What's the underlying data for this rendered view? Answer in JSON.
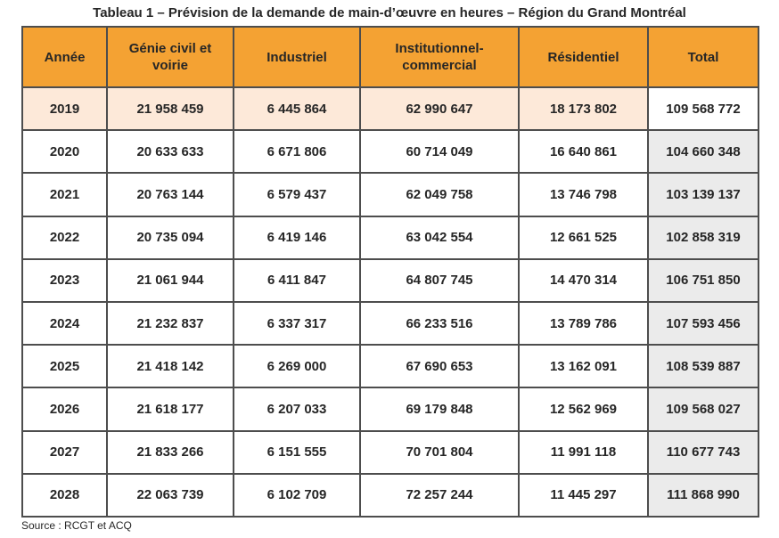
{
  "title": "Tableau 1 – Prévision de la demande de main-d’œuvre en heures – Région du Grand Montréal",
  "columns": [
    "Année",
    "Génie civil et voirie",
    "Industriel",
    "Institutionnel-commercial",
    "Résidentiel",
    "Total"
  ],
  "rows": [
    [
      "2019",
      "21 958 459",
      "6 445 864",
      "62 990 647",
      "18 173 802",
      "109 568 772"
    ],
    [
      "2020",
      "20 633 633",
      "6 671 806",
      "60 714 049",
      "16 640 861",
      "104 660 348"
    ],
    [
      "2021",
      "20 763 144",
      "6 579 437",
      "62 049 758",
      "13 746 798",
      "103 139 137"
    ],
    [
      "2022",
      "20 735 094",
      "6 419 146",
      "63 042 554",
      "12 661 525",
      "102 858 319"
    ],
    [
      "2023",
      "21 061 944",
      "6 411 847",
      "64 807 745",
      "14 470 314",
      "106 751 850"
    ],
    [
      "2024",
      "21 232 837",
      "6 337 317",
      "66 233 516",
      "13 789 786",
      "107 593 456"
    ],
    [
      "2025",
      "21 418 142",
      "6 269 000",
      "67 690 653",
      "13 162 091",
      "108 539 887"
    ],
    [
      "2026",
      "21 618 177",
      "6 207 033",
      "69 179 848",
      "12 562 969",
      "109 568 027"
    ],
    [
      "2027",
      "21 833 266",
      "6 151 555",
      "70 701 804",
      "11 991 118",
      "110 677 743"
    ],
    [
      "2028",
      "22 063 739",
      "6 102 709",
      "72 257 244",
      "11 445 297",
      "111 868 990"
    ]
  ],
  "source": "Source : RCGT et ACQ",
  "colors": {
    "header": "#f4a233",
    "highlight_row": "#fde9d9",
    "total_column": "#ebebeb",
    "border": "#4d4d4d"
  }
}
